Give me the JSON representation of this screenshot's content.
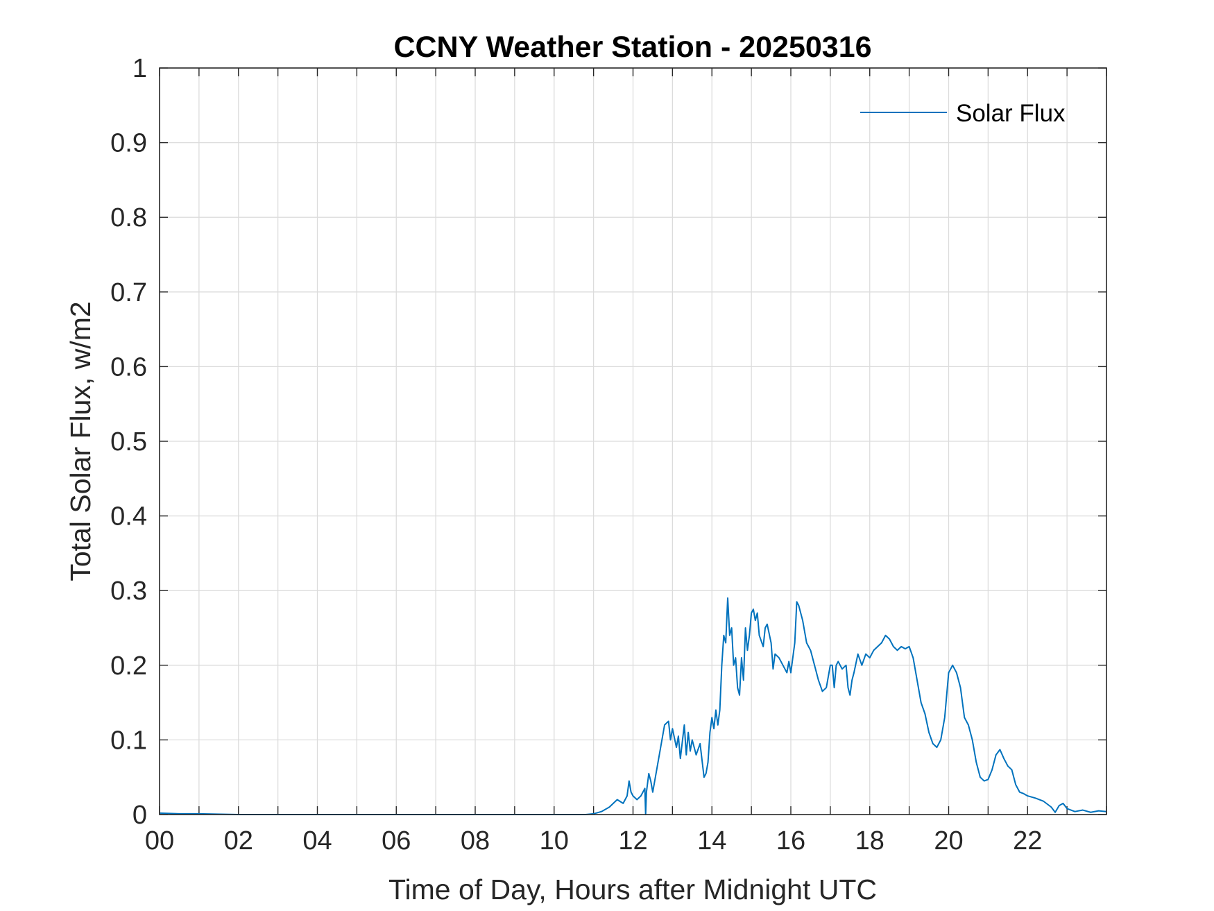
{
  "chart_data": {
    "type": "line",
    "title": "CCNY Weather Station - 20250316",
    "xlabel": "Time of Day, Hours after Midnight UTC",
    "ylabel": "Total Solar Flux, w/m2",
    "xlim": [
      0,
      24
    ],
    "ylim": [
      0,
      1
    ],
    "xticks": [
      0,
      2,
      4,
      6,
      8,
      10,
      12,
      14,
      16,
      18,
      20,
      22
    ],
    "xtick_labels": [
      "00",
      "02",
      "04",
      "06",
      "08",
      "10",
      "12",
      "14",
      "16",
      "18",
      "20",
      "22"
    ],
    "yticks": [
      0,
      0.1,
      0.2,
      0.3,
      0.4,
      0.5,
      0.6,
      0.7,
      0.8,
      0.9,
      1
    ],
    "ytick_labels": [
      "0",
      "0.1",
      "0.2",
      "0.3",
      "0.4",
      "0.5",
      "0.6",
      "0.7",
      "0.8",
      "0.9",
      "1"
    ],
    "grid": true,
    "legend": {
      "position": "top-right",
      "entries": [
        "Solar Flux"
      ]
    },
    "series": [
      {
        "name": "Solar Flux",
        "color": "#0072BD",
        "points": [
          [
            0.0,
            0.002
          ],
          [
            0.5,
            0.001
          ],
          [
            1.0,
            0.001
          ],
          [
            2.0,
            0.0
          ],
          [
            4.0,
            0.0
          ],
          [
            6.0,
            0.0
          ],
          [
            8.0,
            0.0
          ],
          [
            10.0,
            0.0
          ],
          [
            10.8,
            0.0
          ],
          [
            11.0,
            0.001
          ],
          [
            11.2,
            0.004
          ],
          [
            11.4,
            0.01
          ],
          [
            11.6,
            0.02
          ],
          [
            11.75,
            0.015
          ],
          [
            11.85,
            0.025
          ],
          [
            11.9,
            0.045
          ],
          [
            11.95,
            0.03
          ],
          [
            12.0,
            0.025
          ],
          [
            12.1,
            0.02
          ],
          [
            12.2,
            0.025
          ],
          [
            12.3,
            0.035
          ],
          [
            12.32,
            0.0
          ],
          [
            12.34,
            0.03
          ],
          [
            12.4,
            0.055
          ],
          [
            12.45,
            0.045
          ],
          [
            12.5,
            0.03
          ],
          [
            12.6,
            0.06
          ],
          [
            12.7,
            0.09
          ],
          [
            12.8,
            0.12
          ],
          [
            12.9,
            0.125
          ],
          [
            12.95,
            0.1
          ],
          [
            13.0,
            0.115
          ],
          [
            13.1,
            0.09
          ],
          [
            13.15,
            0.105
          ],
          [
            13.2,
            0.075
          ],
          [
            13.3,
            0.12
          ],
          [
            13.35,
            0.08
          ],
          [
            13.4,
            0.11
          ],
          [
            13.45,
            0.085
          ],
          [
            13.5,
            0.1
          ],
          [
            13.6,
            0.08
          ],
          [
            13.7,
            0.095
          ],
          [
            13.8,
            0.05
          ],
          [
            13.85,
            0.055
          ],
          [
            13.9,
            0.07
          ],
          [
            13.95,
            0.11
          ],
          [
            14.0,
            0.13
          ],
          [
            14.05,
            0.115
          ],
          [
            14.1,
            0.14
          ],
          [
            14.15,
            0.12
          ],
          [
            14.2,
            0.14
          ],
          [
            14.25,
            0.2
          ],
          [
            14.3,
            0.24
          ],
          [
            14.35,
            0.23
          ],
          [
            14.4,
            0.29
          ],
          [
            14.45,
            0.24
          ],
          [
            14.5,
            0.25
          ],
          [
            14.55,
            0.2
          ],
          [
            14.6,
            0.21
          ],
          [
            14.65,
            0.17
          ],
          [
            14.7,
            0.16
          ],
          [
            14.75,
            0.21
          ],
          [
            14.8,
            0.18
          ],
          [
            14.85,
            0.25
          ],
          [
            14.9,
            0.22
          ],
          [
            14.95,
            0.24
          ],
          [
            15.0,
            0.27
          ],
          [
            15.05,
            0.275
          ],
          [
            15.1,
            0.26
          ],
          [
            15.15,
            0.27
          ],
          [
            15.2,
            0.24
          ],
          [
            15.3,
            0.225
          ],
          [
            15.35,
            0.25
          ],
          [
            15.4,
            0.255
          ],
          [
            15.5,
            0.23
          ],
          [
            15.55,
            0.195
          ],
          [
            15.6,
            0.215
          ],
          [
            15.7,
            0.21
          ],
          [
            15.8,
            0.2
          ],
          [
            15.9,
            0.19
          ],
          [
            15.95,
            0.205
          ],
          [
            16.0,
            0.19
          ],
          [
            16.05,
            0.21
          ],
          [
            16.1,
            0.23
          ],
          [
            16.15,
            0.285
          ],
          [
            16.2,
            0.28
          ],
          [
            16.3,
            0.26
          ],
          [
            16.4,
            0.23
          ],
          [
            16.5,
            0.22
          ],
          [
            16.6,
            0.2
          ],
          [
            16.7,
            0.18
          ],
          [
            16.8,
            0.165
          ],
          [
            16.9,
            0.17
          ],
          [
            17.0,
            0.2
          ],
          [
            17.05,
            0.2
          ],
          [
            17.1,
            0.17
          ],
          [
            17.15,
            0.2
          ],
          [
            17.2,
            0.205
          ],
          [
            17.3,
            0.195
          ],
          [
            17.4,
            0.2
          ],
          [
            17.45,
            0.17
          ],
          [
            17.5,
            0.16
          ],
          [
            17.55,
            0.18
          ],
          [
            17.6,
            0.19
          ],
          [
            17.7,
            0.215
          ],
          [
            17.8,
            0.2
          ],
          [
            17.9,
            0.215
          ],
          [
            18.0,
            0.21
          ],
          [
            18.1,
            0.22
          ],
          [
            18.2,
            0.225
          ],
          [
            18.3,
            0.23
          ],
          [
            18.4,
            0.24
          ],
          [
            18.5,
            0.235
          ],
          [
            18.6,
            0.225
          ],
          [
            18.7,
            0.22
          ],
          [
            18.8,
            0.225
          ],
          [
            18.9,
            0.222
          ],
          [
            19.0,
            0.225
          ],
          [
            19.1,
            0.21
          ],
          [
            19.2,
            0.18
          ],
          [
            19.3,
            0.15
          ],
          [
            19.4,
            0.135
          ],
          [
            19.5,
            0.11
          ],
          [
            19.6,
            0.095
          ],
          [
            19.7,
            0.09
          ],
          [
            19.8,
            0.1
          ],
          [
            19.9,
            0.13
          ],
          [
            20.0,
            0.19
          ],
          [
            20.1,
            0.2
          ],
          [
            20.2,
            0.19
          ],
          [
            20.3,
            0.17
          ],
          [
            20.4,
            0.13
          ],
          [
            20.5,
            0.12
          ],
          [
            20.6,
            0.1
          ],
          [
            20.7,
            0.07
          ],
          [
            20.8,
            0.05
          ],
          [
            20.9,
            0.045
          ],
          [
            21.0,
            0.047
          ],
          [
            21.1,
            0.06
          ],
          [
            21.2,
            0.08
          ],
          [
            21.3,
            0.087
          ],
          [
            21.4,
            0.075
          ],
          [
            21.5,
            0.065
          ],
          [
            21.6,
            0.06
          ],
          [
            21.7,
            0.04
          ],
          [
            21.8,
            0.03
          ],
          [
            21.9,
            0.028
          ],
          [
            22.0,
            0.025
          ],
          [
            22.2,
            0.022
          ],
          [
            22.4,
            0.018
          ],
          [
            22.6,
            0.01
          ],
          [
            22.7,
            0.003
          ],
          [
            22.8,
            0.012
          ],
          [
            22.9,
            0.015
          ],
          [
            23.0,
            0.008
          ],
          [
            23.2,
            0.004
          ],
          [
            23.4,
            0.006
          ],
          [
            23.6,
            0.003
          ],
          [
            23.8,
            0.005
          ],
          [
            24.0,
            0.004
          ]
        ]
      }
    ]
  }
}
